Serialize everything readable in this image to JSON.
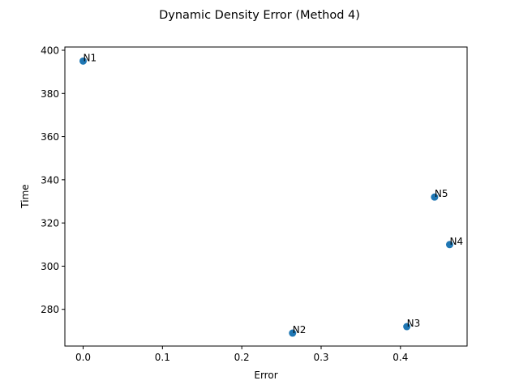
{
  "chart_data": {
    "type": "scatter",
    "title": "Dynamic Density Error (Method 4)",
    "xlabel": "Error",
    "ylabel": "Time",
    "xlim": [
      -0.023,
      0.484
    ],
    "ylim": [
      263.0,
      401.5
    ],
    "xticks": [
      0.0,
      0.1,
      0.2,
      0.3,
      0.4
    ],
    "xtick_labels": [
      "0.0",
      "0.1",
      "0.2",
      "0.3",
      "0.4"
    ],
    "yticks": [
      280,
      300,
      320,
      340,
      360,
      380,
      400
    ],
    "ytick_labels": [
      "280",
      "300",
      "320",
      "340",
      "360",
      "380",
      "400"
    ],
    "grid": false,
    "legend": false,
    "point_color": "#1f77b4",
    "points": [
      {
        "label": "N1",
        "x": 0.0,
        "y": 395
      },
      {
        "label": "N2",
        "x": 0.264,
        "y": 269
      },
      {
        "label": "N3",
        "x": 0.408,
        "y": 272
      },
      {
        "label": "N4",
        "x": 0.462,
        "y": 310
      },
      {
        "label": "N5",
        "x": 0.443,
        "y": 332
      }
    ]
  }
}
